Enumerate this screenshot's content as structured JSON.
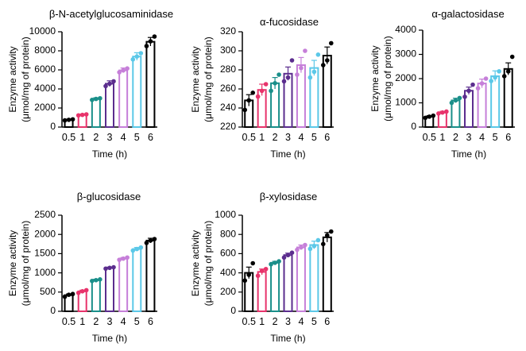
{
  "chart_data": [
    {
      "type": "bar",
      "title": "β-N-acetylglucosaminidase",
      "xlabel": "Time (h)",
      "ylabel": [
        "Enzyme activity",
        "(μmol/mg of protein)"
      ],
      "categories": [
        "0.5",
        "1",
        "2",
        "3",
        "4",
        "5",
        "6"
      ],
      "values": [
        750,
        1280,
        2950,
        4550,
        5950,
        7400,
        8950
      ],
      "errors": [
        80,
        80,
        120,
        300,
        250,
        400,
        450
      ],
      "points": [
        [
          700,
          760,
          810
        ],
        [
          1230,
          1280,
          1330
        ],
        [
          2850,
          2950,
          3020
        ],
        [
          4300,
          4550,
          4800
        ],
        [
          5750,
          5950,
          6150
        ],
        [
          7100,
          7400,
          7750
        ],
        [
          8500,
          9000,
          9500
        ]
      ],
      "ylim": [
        0,
        10000
      ],
      "yticks": [
        0,
        2000,
        4000,
        6000,
        8000,
        10000
      ],
      "colors": [
        "#000000",
        "#e8336b",
        "#1a8f8a",
        "#5b2d8e",
        "#c67fd9",
        "#5bc8e8",
        "#000000"
      ]
    },
    {
      "type": "bar",
      "title": "α-fucosidase",
      "xlabel": "Time (h)",
      "ylabel": [
        "Enzyme activity",
        "(μmol/mg of protein)"
      ],
      "categories": [
        "0.5",
        "1",
        "2",
        "3",
        "4",
        "5",
        "6"
      ],
      "values": [
        248,
        259,
        266,
        276,
        285,
        282,
        295
      ],
      "errors": [
        6,
        6,
        6,
        7,
        8,
        8,
        9
      ],
      "points": [
        [
          238,
          248,
          256
        ],
        [
          252,
          258,
          265
        ],
        [
          258,
          266,
          275
        ],
        [
          268,
          272,
          290
        ],
        [
          275,
          282,
          300
        ],
        [
          272,
          278,
          296
        ],
        [
          285,
          290,
          308
        ]
      ],
      "ylim": [
        220,
        320
      ],
      "yticks": [
        220,
        240,
        260,
        280,
        300,
        320
      ],
      "colors": [
        "#000000",
        "#e8336b",
        "#1a8f8a",
        "#5b2d8e",
        "#c67fd9",
        "#5bc8e8",
        "#000000"
      ]
    },
    {
      "type": "bar",
      "title": "α-galactosidase",
      "xlabel": "Time (h)",
      "ylabel": [
        "Enzyme activity",
        "(μmol/mg of protein)"
      ],
      "categories": [
        "0.5",
        "1",
        "2",
        "3",
        "4",
        "5",
        "6"
      ],
      "values": [
        430,
        600,
        1100,
        1500,
        1800,
        2100,
        2400
      ],
      "errors": [
        40,
        50,
        90,
        150,
        180,
        220,
        250
      ],
      "points": [
        [
          380,
          430,
          470
        ],
        [
          560,
          600,
          640
        ],
        [
          1000,
          1100,
          1200
        ],
        [
          1250,
          1500,
          1750
        ],
        [
          1600,
          1800,
          2000
        ],
        [
          1900,
          2050,
          2300
        ],
        [
          2100,
          2300,
          2900
        ]
      ],
      "ylim": [
        0,
        4000
      ],
      "yticks": [
        0,
        1000,
        2000,
        3000,
        4000
      ],
      "colors": [
        "#000000",
        "#e8336b",
        "#1a8f8a",
        "#5b2d8e",
        "#c67fd9",
        "#5bc8e8",
        "#000000"
      ]
    },
    {
      "type": "bar",
      "title": "β-glucosidase",
      "xlabel": "Time (h)",
      "ylabel": [
        "Enzyme activity",
        "(μmol/mg of protein)"
      ],
      "categories": [
        "0.5",
        "1",
        "2",
        "3",
        "4",
        "5",
        "6"
      ],
      "values": [
        420,
        520,
        810,
        1130,
        1370,
        1620,
        1840
      ],
      "errors": [
        30,
        30,
        25,
        20,
        30,
        40,
        60
      ],
      "points": [
        [
          380,
          430,
          450
        ],
        [
          480,
          520,
          550
        ],
        [
          790,
          810,
          830
        ],
        [
          1110,
          1130,
          1145
        ],
        [
          1340,
          1370,
          1400
        ],
        [
          1580,
          1620,
          1660
        ],
        [
          1780,
          1840,
          1880
        ]
      ],
      "ylim": [
        0,
        2500
      ],
      "yticks": [
        0,
        500,
        1000,
        1500,
        2000,
        2500
      ],
      "colors": [
        "#000000",
        "#e8336b",
        "#1a8f8a",
        "#5b2d8e",
        "#c67fd9",
        "#5bc8e8",
        "#000000"
      ]
    },
    {
      "type": "bar",
      "title": "β-xylosidase",
      "xlabel": "Time (h)",
      "ylabel": [
        "Enzyme activity",
        "(μmol/mg of protein)"
      ],
      "categories": [
        "0.5",
        "1",
        "2",
        "3",
        "4",
        "5",
        "6"
      ],
      "values": [
        400,
        410,
        505,
        585,
        665,
        690,
        770
      ],
      "errors": [
        60,
        30,
        15,
        20,
        25,
        40,
        50
      ],
      "points": [
        [
          320,
          380,
          500
        ],
        [
          370,
          420,
          440
        ],
        [
          490,
          505,
          520
        ],
        [
          560,
          585,
          610
        ],
        [
          640,
          665,
          690
        ],
        [
          650,
          680,
          740
        ],
        [
          700,
          790,
          830
        ]
      ],
      "ylim": [
        0,
        1000
      ],
      "yticks": [
        0,
        200,
        400,
        600,
        800,
        1000
      ],
      "colors": [
        "#000000",
        "#e8336b",
        "#1a8f8a",
        "#5b2d8e",
        "#c67fd9",
        "#5bc8e8",
        "#000000"
      ]
    }
  ]
}
